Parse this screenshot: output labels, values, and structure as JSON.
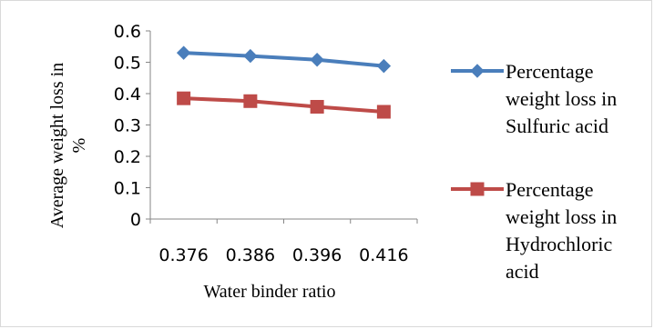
{
  "chart_data": {
    "type": "line",
    "categories": [
      "0.376",
      "0.386",
      "0.396",
      "0.416"
    ],
    "series": [
      {
        "name": "Percentage weight loss in Sulfuric acid",
        "legend_lines": [
          "Percentage",
          "weight loss in",
          "Sulfuric acid"
        ],
        "values": [
          0.53,
          0.52,
          0.508,
          0.488
        ],
        "color": "#4a7ebb",
        "marker": "diamond"
      },
      {
        "name": "Percentage weight loss in Hydrochloric acid",
        "legend_lines": [
          "Percentage",
          "weight loss in",
          "Hydrochloric",
          "acid"
        ],
        "values": [
          0.385,
          0.376,
          0.358,
          0.342
        ],
        "color": "#be4b48",
        "marker": "square"
      }
    ],
    "xlabel": "Water binder ratio",
    "ylabel_lines": [
      "Average weight loss in",
      "%"
    ],
    "ylim": [
      0,
      0.6
    ],
    "yticks": [
      "0",
      "0.1",
      "0.2",
      "0.3",
      "0.4",
      "0.5",
      "0.6"
    ],
    "grid": false,
    "legend_position": "right"
  }
}
